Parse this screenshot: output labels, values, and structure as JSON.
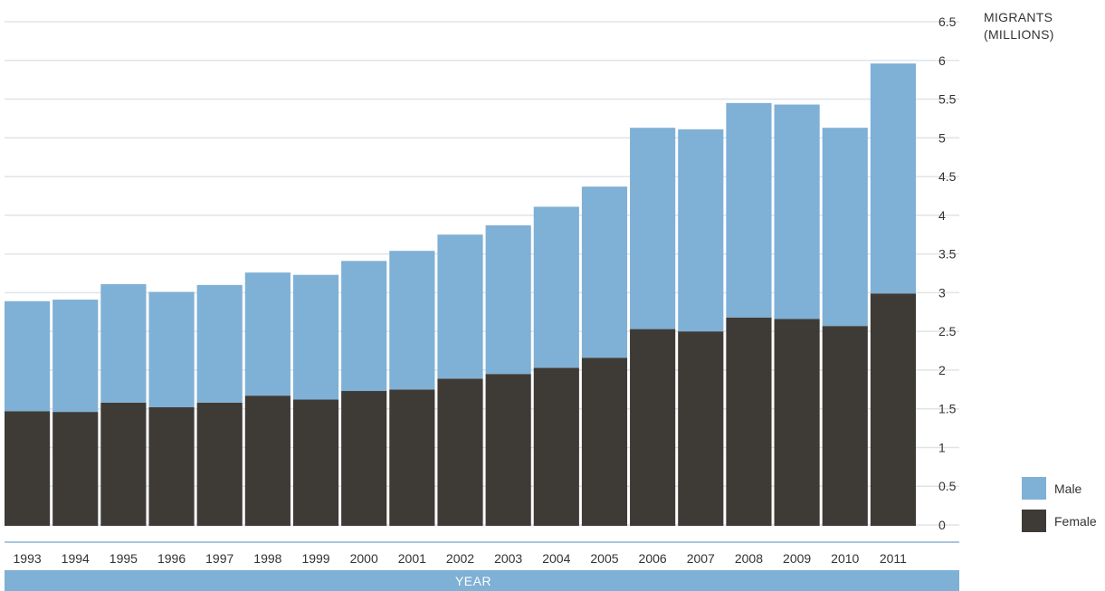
{
  "chart_data": {
    "type": "bar",
    "stacked": true,
    "categories": [
      "1993",
      "1994",
      "1995",
      "1996",
      "1997",
      "1998",
      "1999",
      "2000",
      "2001",
      "2002",
      "2003",
      "2004",
      "2005",
      "2006",
      "2007",
      "2008",
      "2009",
      "2010",
      "2011"
    ],
    "series": [
      {
        "name": "Female",
        "color": "#3e3b36",
        "values": [
          1.47,
          1.46,
          1.58,
          1.52,
          1.58,
          1.67,
          1.62,
          1.73,
          1.75,
          1.89,
          1.95,
          2.03,
          2.16,
          2.53,
          2.5,
          2.68,
          2.66,
          2.57,
          2.99
        ]
      },
      {
        "name": "Male",
        "color": "#7fb0d5",
        "values": [
          1.42,
          1.45,
          1.53,
          1.49,
          1.52,
          1.59,
          1.61,
          1.68,
          1.79,
          1.86,
          1.92,
          2.08,
          2.21,
          2.6,
          2.61,
          2.77,
          2.77,
          2.56,
          2.97
        ]
      }
    ],
    "y_axis": {
      "label_lines": [
        "MIGRANTS",
        "(MILLIONS)"
      ],
      "ticks": [
        "0",
        "0.5",
        "1",
        "1.5",
        "2",
        "2.5",
        "3",
        "3.5",
        "4",
        "4.5",
        "5",
        "5.5",
        "6",
        "6.5"
      ],
      "ylim": [
        0,
        6.5
      ],
      "position": "right"
    },
    "x_axis": {
      "title": "YEAR"
    },
    "legend": [
      {
        "label": "Male",
        "color": "#7fb0d5"
      },
      {
        "label": "Female",
        "color": "#3e3b36"
      }
    ],
    "legend_position": "bottom-right",
    "grid": true
  }
}
